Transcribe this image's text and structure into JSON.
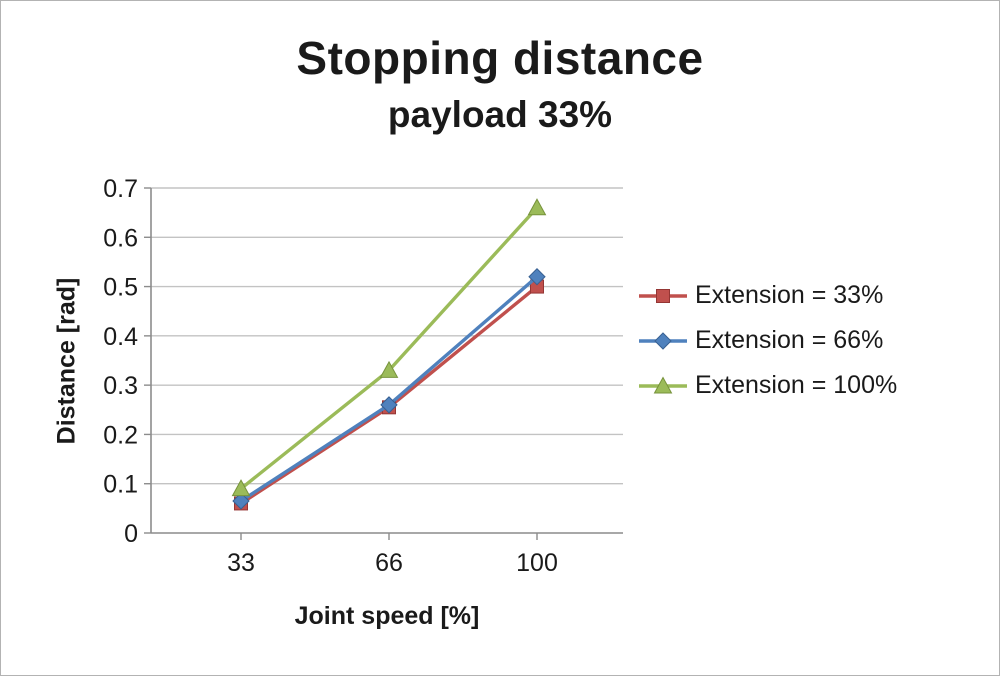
{
  "chart_data": {
    "type": "line",
    "title": "Stopping distance",
    "subtitle": "payload 33%",
    "xlabel": "Joint speed [%]",
    "ylabel": "Distance [rad]",
    "categories": [
      "33",
      "66",
      "100"
    ],
    "series": [
      {
        "name": "Extension = 33%",
        "values": [
          0.06,
          0.255,
          0.5
        ],
        "color": "#c0504d",
        "edge": "#943634",
        "marker": "square"
      },
      {
        "name": "Extension = 66%",
        "values": [
          0.065,
          0.26,
          0.52
        ],
        "color": "#4f81bd",
        "edge": "#376092",
        "marker": "diamond"
      },
      {
        "name": "Extension = 100%",
        "values": [
          0.09,
          0.33,
          0.66
        ],
        "color": "#9bbb59",
        "edge": "#77933c",
        "marker": "triangle"
      }
    ],
    "ylim": [
      0,
      0.7
    ],
    "ytick_step": 0.1,
    "grid": true,
    "legend_position": "right",
    "gridline_color": "#c3c3c3",
    "axis_color": "#8c8c8c"
  }
}
